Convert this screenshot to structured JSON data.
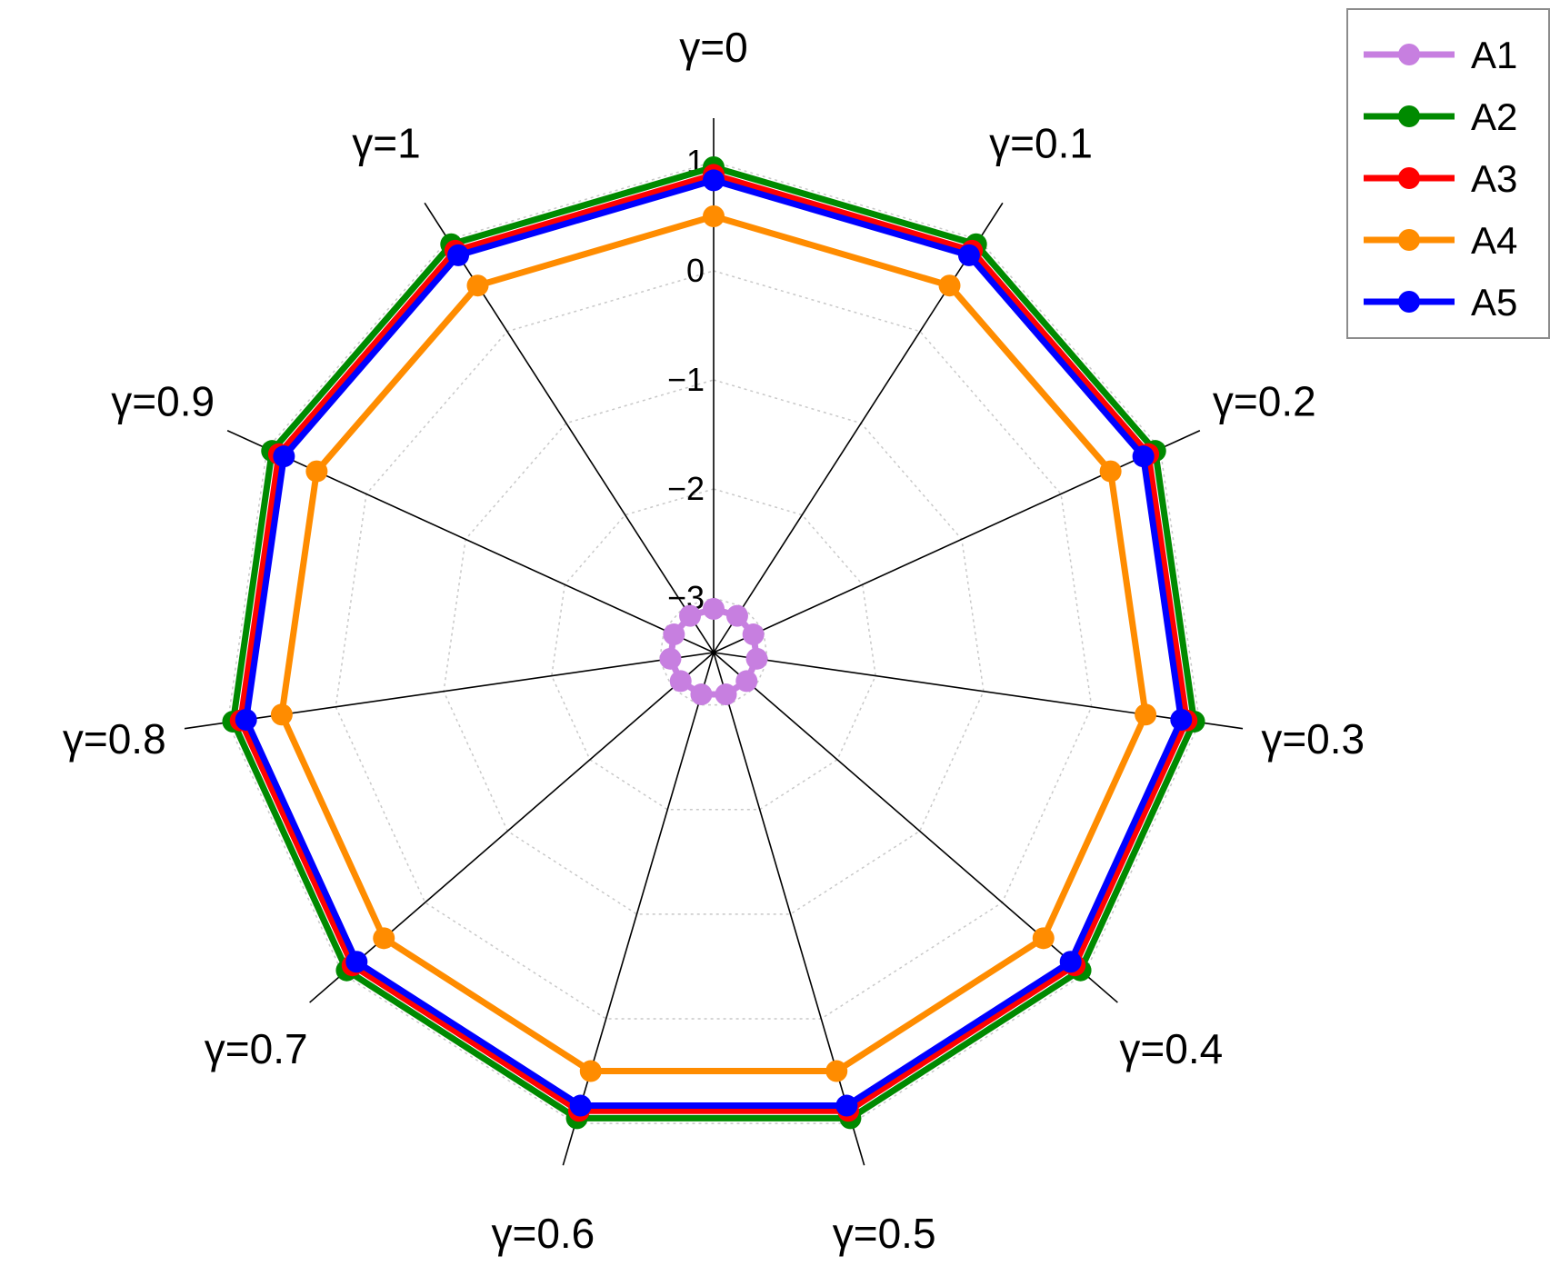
{
  "chart_data": {
    "type": "radar",
    "axes": [
      "γ=0",
      "γ=0.1",
      "γ=0.2",
      "γ=0.3",
      "γ=0.4",
      "γ=0.5",
      "γ=0.6",
      "γ=0.7",
      "γ=0.8",
      "γ=0.9",
      "γ=1"
    ],
    "rlim": [
      -3.5,
      1.4
    ],
    "tick_labels": [
      "1",
      "0",
      "−1",
      "−2",
      "−3"
    ],
    "tick_values": [
      1,
      0,
      -1,
      -2,
      -3
    ],
    "grid": true,
    "legend_position": "top-right",
    "series": [
      {
        "name": "A1",
        "color": "#c77fe0",
        "values": [
          -3.1,
          -3.1,
          -3.1,
          -3.1,
          -3.1,
          -3.1,
          -3.1,
          -3.1,
          -3.1,
          -3.1,
          -3.1
        ]
      },
      {
        "name": "A2",
        "color": "#008a00",
        "values": [
          0.95,
          0.95,
          0.95,
          0.95,
          0.95,
          0.95,
          0.95,
          0.95,
          0.95,
          0.95,
          0.95
        ]
      },
      {
        "name": "A3",
        "color": "#ff0000",
        "values": [
          0.88,
          0.88,
          0.88,
          0.88,
          0.88,
          0.88,
          0.88,
          0.88,
          0.88,
          0.88,
          0.88
        ]
      },
      {
        "name": "A4",
        "color": "#ff8c00",
        "values": [
          0.5,
          0.5,
          0.5,
          0.5,
          0.5,
          0.5,
          0.5,
          0.5,
          0.5,
          0.5,
          0.5
        ]
      },
      {
        "name": "A5",
        "color": "#0000ff",
        "values": [
          0.83,
          0.83,
          0.83,
          0.83,
          0.83,
          0.83,
          0.83,
          0.83,
          0.83,
          0.83,
          0.83
        ]
      }
    ]
  }
}
